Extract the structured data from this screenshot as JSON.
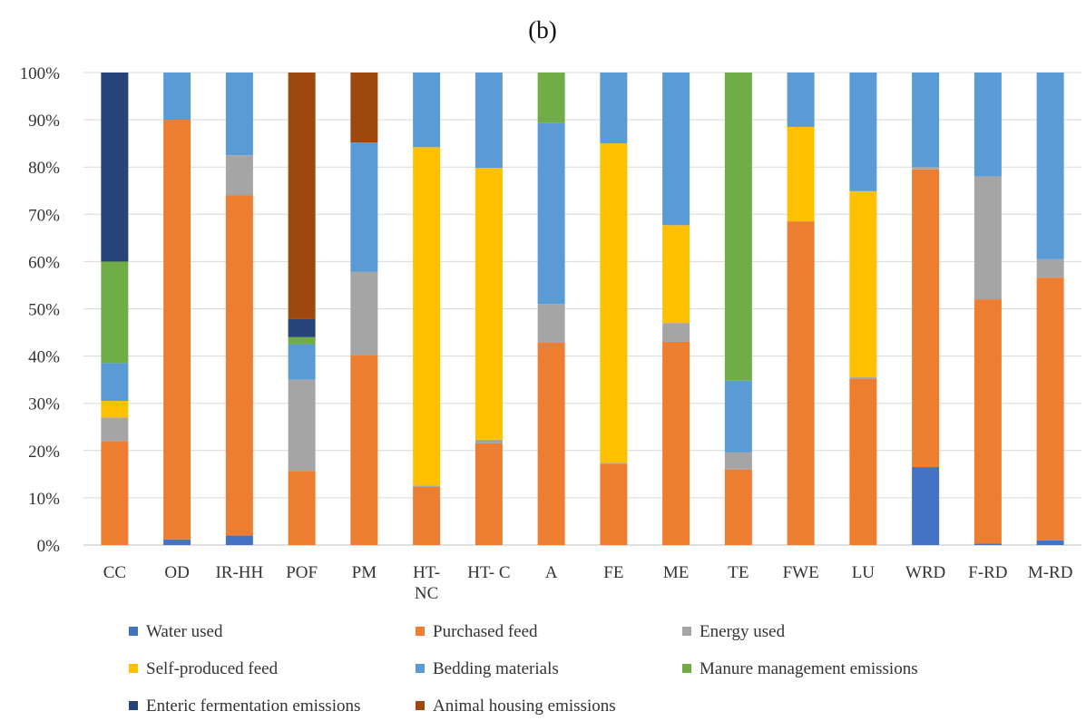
{
  "chart_data": {
    "type": "bar",
    "stacked": true,
    "percent": true,
    "title": "(b)",
    "xlabel": "",
    "ylabel": "",
    "ylim": [
      0,
      100
    ],
    "yticks": [
      "0%",
      "10%",
      "20%",
      "30%",
      "40%",
      "50%",
      "60%",
      "70%",
      "80%",
      "90%",
      "100%"
    ],
    "grid": true,
    "legend_position": "bottom",
    "categories": [
      [
        "CC"
      ],
      [
        "OD"
      ],
      [
        "IR-HH"
      ],
      [
        "POF"
      ],
      [
        "PM"
      ],
      [
        "HT-",
        "NC"
      ],
      [
        "HT- C"
      ],
      [
        "A"
      ],
      [
        "FE"
      ],
      [
        "ME"
      ],
      [
        "TE"
      ],
      [
        "FWE"
      ],
      [
        "LU"
      ],
      [
        "WRD"
      ],
      [
        "F-RD"
      ],
      [
        "M-RD"
      ]
    ],
    "series": [
      {
        "name": "Water used",
        "color": "#4472C4",
        "values": [
          0,
          1.2,
          2,
          0,
          0,
          0,
          0,
          0,
          0,
          0,
          0,
          0,
          0,
          16.5,
          0.3,
          1
        ]
      },
      {
        "name": "Purchased feed",
        "color": "#ED7D31",
        "values": [
          22,
          88.8,
          72,
          15.7,
          40.2,
          12.3,
          21.5,
          42.8,
          17.2,
          43,
          16,
          68.5,
          35.2,
          63,
          51.7,
          55.6
        ]
      },
      {
        "name": "Energy used",
        "color": "#A5A5A5",
        "values": [
          5,
          0,
          8.5,
          19.3,
          17.6,
          0.3,
          0.8,
          8.2,
          0.2,
          4,
          3.6,
          0,
          0.3,
          0.5,
          26,
          3.9
        ]
      },
      {
        "name": "Self-produced feed",
        "color": "#FFC000",
        "values": [
          3.5,
          0,
          0,
          0,
          0,
          71.6,
          57.5,
          0,
          67.6,
          20.7,
          0,
          20,
          39.4,
          0,
          0,
          0
        ]
      },
      {
        "name": "Bedding materials",
        "color": "#5B9BD5",
        "values": [
          8,
          10,
          17.5,
          7.5,
          27.4,
          15.8,
          20.2,
          38.3,
          15,
          32.3,
          15.2,
          11.5,
          25.1,
          20,
          22,
          39.5
        ]
      },
      {
        "name": "Manure management emissions",
        "color": "#70AD47",
        "values": [
          21.5,
          0,
          0,
          1.5,
          0,
          0,
          0,
          10.7,
          0,
          0,
          65.2,
          0,
          0,
          0,
          0,
          0
        ]
      },
      {
        "name": "Enteric fermentation emissions",
        "color": "#264478",
        "values": [
          40,
          0,
          0,
          3.8,
          0,
          0,
          0,
          0,
          0,
          0,
          0,
          0,
          0,
          0,
          0,
          0
        ]
      },
      {
        "name": "Animal housing emissions",
        "color": "#9E480E",
        "values": [
          0,
          0,
          0,
          52.2,
          14.8,
          0,
          0,
          0,
          0,
          0,
          0,
          0,
          0,
          0,
          0,
          0
        ]
      }
    ]
  }
}
